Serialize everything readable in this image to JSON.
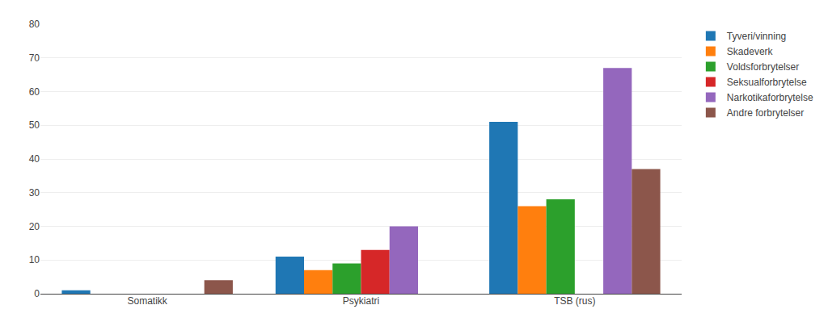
{
  "chart_data": {
    "type": "bar",
    "categories": [
      "Somatikk",
      "Psykiatri",
      "TSB (rus)"
    ],
    "series": [
      {
        "name": "Tyveri/vinning",
        "values": [
          1,
          11,
          51
        ]
      },
      {
        "name": "Skadeverk",
        "values": [
          0,
          7,
          26
        ]
      },
      {
        "name": "Voldsforbrytelser",
        "values": [
          0,
          9,
          28
        ]
      },
      {
        "name": "Seksualforbrytelse",
        "values": [
          0,
          13,
          0
        ]
      },
      {
        "name": "Narkotikaforbrytelse",
        "values": [
          0,
          20,
          67
        ]
      },
      {
        "name": "Andre forbrytelser",
        "values": [
          4,
          0,
          37
        ]
      }
    ],
    "ylim": [
      0,
      80
    ],
    "yticks": [
      0,
      10,
      20,
      30,
      40,
      50,
      60,
      70,
      80
    ],
    "grid": true,
    "legend": "right"
  }
}
